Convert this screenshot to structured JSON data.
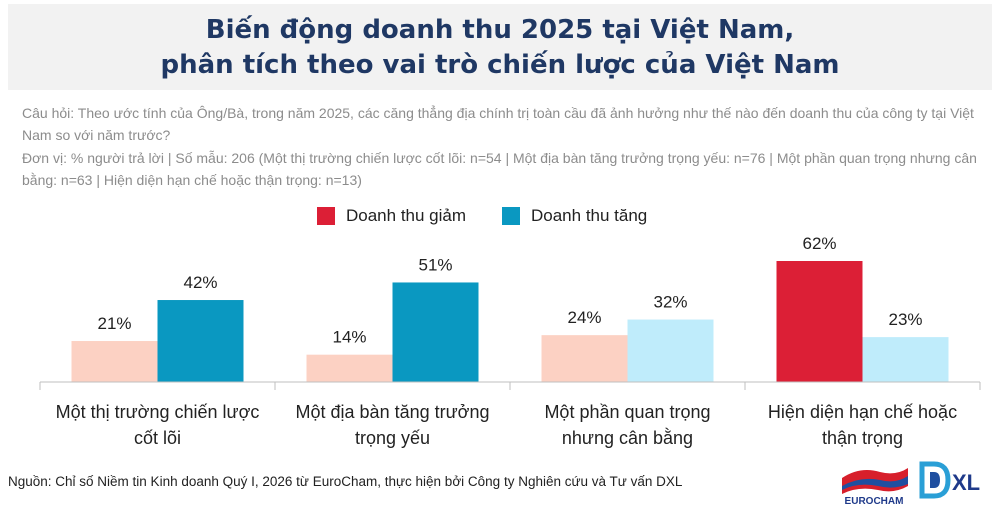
{
  "title_line1": "Biến động doanh thu 2025 tại Việt Nam,",
  "title_line2": "phân tích theo vai trò chiến lược của Việt Nam",
  "question": "Câu hỏi: Theo ước tính của Ông/Bà, trong năm 2025, các căng thẳng địa chính trị toàn cầu đã ảnh hưởng như thế nào đến doanh thu của công ty tại Việt Nam so với năm trước?",
  "unit": "Đơn vị: % người trả lời | Số mẫu: 206 (Một thị trường chiến lược cốt lõi: n=54 | Một địa bàn tăng trưởng trọng yếu: n=76 | Một phần quan trọng nhưng cân bằng: n=63 | Hiện diện hạn chế hoặc thận trọng: n=13)",
  "footer": "Nguồn: Chỉ số Niềm tin Kinh doanh Quý I, 2026 từ EuroCham, thực hiện bởi Công ty Nghiên cứu và Tư vấn DXL",
  "logos": {
    "eurocham": "EUROCHAM",
    "dxl": "XL"
  },
  "colors": {
    "decrease": "#dc1f36",
    "increase": "#0a98c1",
    "decrease_light": "#fcd1c3",
    "increase_light": "#bfecfb"
  },
  "chart_data": {
    "type": "bar",
    "categories": [
      [
        "Một thị trường chiến lược",
        "cốt lõi"
      ],
      [
        "Một địa bàn tăng trưởng",
        "trọng yếu"
      ],
      [
        "Một phần quan trọng",
        "nhưng cân bằng"
      ],
      [
        "Hiện diện hạn chế hoặc",
        "thận trọng"
      ]
    ],
    "series": [
      {
        "name": "Doanh thu giảm",
        "values": [
          21,
          14,
          24,
          62
        ],
        "color": "#dc1f36"
      },
      {
        "name": "Doanh thu tăng",
        "values": [
          42,
          51,
          32,
          23
        ],
        "color": "#0a98c1"
      }
    ],
    "bar_colors": [
      [
        "#fcd1c3",
        "#0a98c1"
      ],
      [
        "#fcd1c3",
        "#0a98c1"
      ],
      [
        "#fcd1c3",
        "#bfecfb"
      ],
      [
        "#dc1f36",
        "#bfecfb"
      ]
    ],
    "value_suffix": "%",
    "ylim": [
      0,
      62
    ],
    "legend_position": "top-center",
    "grid": false
  }
}
